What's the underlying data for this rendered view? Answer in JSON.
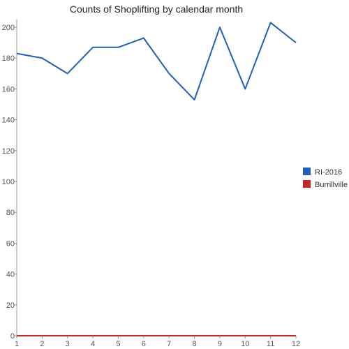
{
  "chart_data": {
    "type": "line",
    "title": "Counts of Shoplifting by calendar month",
    "xlabel": "",
    "ylabel": "",
    "x": [
      1,
      2,
      3,
      4,
      5,
      6,
      7,
      8,
      9,
      10,
      11,
      12
    ],
    "xlim": [
      1,
      12
    ],
    "ylim": [
      0,
      205
    ],
    "yticks": [
      0,
      20,
      40,
      60,
      80,
      100,
      120,
      140,
      160,
      180,
      200
    ],
    "grid": false,
    "legend_position": "right",
    "series": [
      {
        "name": "RI-2016",
        "color": "#1f5fbf",
        "values": [
          183,
          180,
          170,
          187,
          187,
          193,
          170,
          153,
          200,
          160,
          203,
          190
        ]
      },
      {
        "name": "Burrillville",
        "color": "#c62828",
        "values": [
          0,
          0,
          0,
          0,
          0,
          0,
          0,
          0,
          0,
          0,
          0,
          0
        ]
      }
    ]
  }
}
